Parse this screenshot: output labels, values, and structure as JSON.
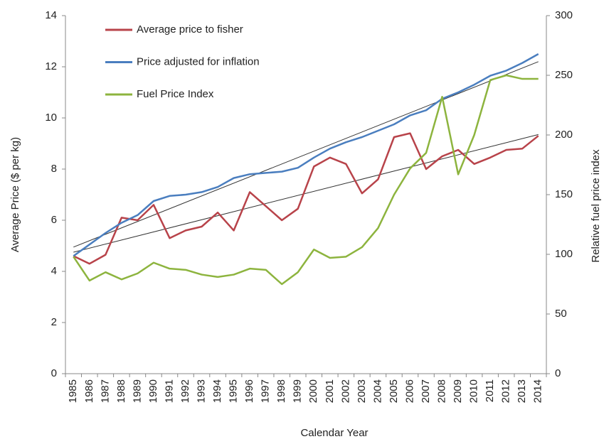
{
  "chart_data": {
    "type": "line",
    "x_label": "Calendar Year",
    "y_label": "Average  Price ($ per kg)",
    "y2_label": "Relative fuel price index",
    "categories": [
      "1985",
      "1986",
      "1987",
      "1988",
      "1989",
      "1990",
      "1991",
      "1992",
      "1993",
      "1994",
      "1995",
      "1996",
      "1997",
      "1998",
      "1999",
      "2000",
      "2001",
      "2002",
      "2003",
      "2004",
      "2005",
      "2006",
      "2007",
      "2008",
      "2009",
      "2010",
      "2011",
      "2012",
      "2013",
      "2014"
    ],
    "series": [
      {
        "name": "Average price to fisher",
        "color": "#b8434a",
        "values": [
          4.6,
          4.3,
          4.65,
          6.1,
          6.0,
          6.6,
          5.3,
          5.6,
          5.75,
          6.3,
          5.6,
          7.1,
          6.55,
          6.0,
          6.45,
          8.1,
          8.45,
          8.2,
          7.05,
          7.6,
          9.25,
          9.4,
          8.0,
          8.5,
          8.75,
          8.2,
          8.45,
          8.75,
          8.8,
          9.3
        ]
      },
      {
        "name": "Price adjusted for inflation",
        "color": "#4a7ebf",
        "values": [
          4.6,
          5.05,
          5.5,
          5.9,
          6.2,
          6.75,
          6.95,
          7.0,
          7.1,
          7.3,
          7.65,
          7.8,
          7.85,
          7.9,
          8.05,
          8.45,
          8.8,
          9.05,
          9.25,
          9.5,
          9.75,
          10.1,
          10.3,
          10.75,
          11.0,
          11.3,
          11.65,
          11.85,
          12.15,
          12.5
        ]
      },
      {
        "name": "Fuel Price Index",
        "color": "#8db43e",
        "axis": "y2",
        "values": [
          98,
          78,
          85,
          79,
          84,
          93,
          88,
          87,
          83,
          81,
          83,
          88,
          87,
          75,
          85,
          104,
          97,
          98,
          106,
          122,
          150,
          172,
          185,
          232,
          167,
          200,
          246,
          250,
          247,
          247
        ]
      }
    ],
    "trendlines": [
      {
        "color": "#333333",
        "values": [
          4.75,
          9.35
        ]
      },
      {
        "color": "#333333",
        "values": [
          4.95,
          12.2
        ]
      }
    ],
    "ylim": [
      0,
      14
    ],
    "yticks": [
      0,
      2,
      4,
      6,
      8,
      10,
      12,
      14
    ],
    "y2lim": [
      0,
      300
    ],
    "y2ticks": [
      0,
      50,
      100,
      150,
      200,
      250,
      300
    ],
    "legend": "upper left"
  }
}
